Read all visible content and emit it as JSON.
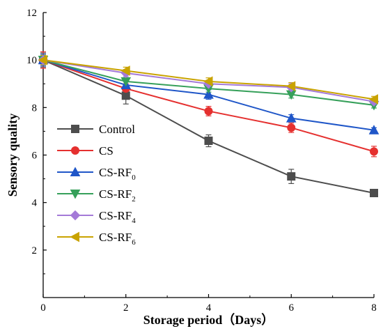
{
  "chart_data": {
    "type": "line",
    "xlabel": "Storage period（Days）",
    "ylabel": "Sensory quality",
    "xlim": [
      0,
      8
    ],
    "ylim": [
      0,
      12
    ],
    "xticks": [
      0,
      2,
      4,
      6,
      8
    ],
    "yticks": [
      2,
      4,
      6,
      8,
      10,
      12
    ],
    "grid": false,
    "legend": "bottom-left",
    "x": [
      0,
      2,
      4,
      6,
      8
    ],
    "series": [
      {
        "name": "Control",
        "name_main": "Control",
        "name_sub": "",
        "marker": "square",
        "color": "#4d4d4d",
        "values": [
          10.0,
          8.5,
          6.6,
          5.1,
          4.4
        ],
        "errors": [
          0.3,
          0.35,
          0.25,
          0.3,
          0.12
        ]
      },
      {
        "name": "CS",
        "name_main": "CS",
        "name_sub": "",
        "marker": "circle",
        "color": "#e5302f",
        "values": [
          10.0,
          8.8,
          7.85,
          7.15,
          6.15
        ],
        "errors": [
          0.35,
          0.2,
          0.2,
          0.2,
          0.22
        ]
      },
      {
        "name": "CS-RF0",
        "name_main": "CS-RF",
        "name_sub": "0",
        "marker": "triangle-up",
        "color": "#1f56c8",
        "values": [
          10.0,
          8.95,
          8.55,
          7.55,
          7.05
        ],
        "errors": [
          0.25,
          0.2,
          0.2,
          0.15,
          0.1
        ]
      },
      {
        "name": "CS-RF2",
        "name_main": "CS-RF",
        "name_sub": "2",
        "marker": "triangle-down",
        "color": "#36a05a",
        "values": [
          10.0,
          9.1,
          8.8,
          8.55,
          8.1
        ],
        "errors": [
          0.2,
          0.15,
          0.15,
          0.15,
          0.12
        ]
      },
      {
        "name": "CS-RF4",
        "name_main": "CS-RF",
        "name_sub": "4",
        "marker": "diamond",
        "color": "#a47ad8",
        "values": [
          10.0,
          9.45,
          9.0,
          8.85,
          8.25
        ],
        "errors": [
          0.2,
          0.15,
          0.15,
          0.15,
          0.12
        ]
      },
      {
        "name": "CS-RF6",
        "name_main": "CS-RF",
        "name_sub": "6",
        "marker": "triangle-left",
        "color": "#c9a300",
        "values": [
          10.0,
          9.55,
          9.1,
          8.9,
          8.35
        ],
        "errors": [
          0.2,
          0.15,
          0.15,
          0.15,
          0.12
        ]
      }
    ]
  }
}
